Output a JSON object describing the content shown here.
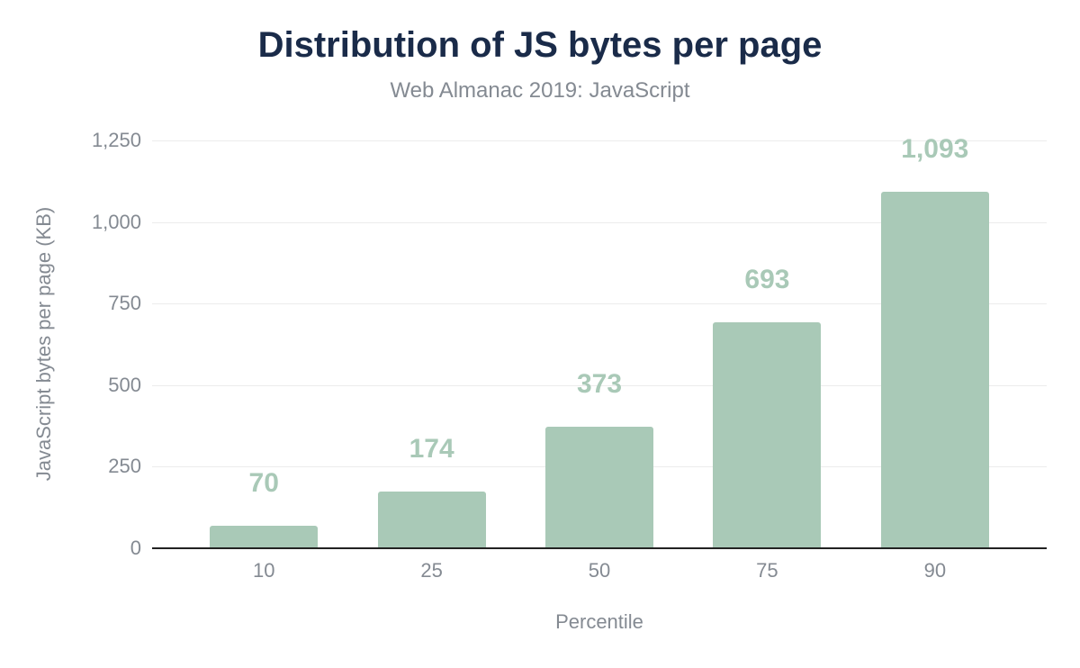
{
  "chart_data": {
    "type": "bar",
    "title": "Distribution of JS bytes per page",
    "subtitle": "Web Almanac 2019: JavaScript",
    "xlabel": "Percentile",
    "ylabel": "JavaScript bytes per page (KB)",
    "categories": [
      "10",
      "25",
      "50",
      "75",
      "90"
    ],
    "values": [
      70,
      174,
      373,
      693,
      1093
    ],
    "value_labels": [
      "70",
      "174",
      "373",
      "693",
      "1,093"
    ],
    "ylim": [
      0,
      1250
    ],
    "yticks": [
      0,
      250,
      500,
      750,
      1000,
      1250
    ],
    "ytick_labels": [
      "0",
      "250",
      "500",
      "750",
      "1,000",
      "1,250"
    ],
    "grid": true,
    "legend_position": "none",
    "colors": {
      "bar": "#a9c9b7",
      "title": "#1a2b49",
      "text_gray": "#848a92",
      "gridline": "#ececec",
      "axis_line": "#222222",
      "background": "#ffffff"
    }
  }
}
